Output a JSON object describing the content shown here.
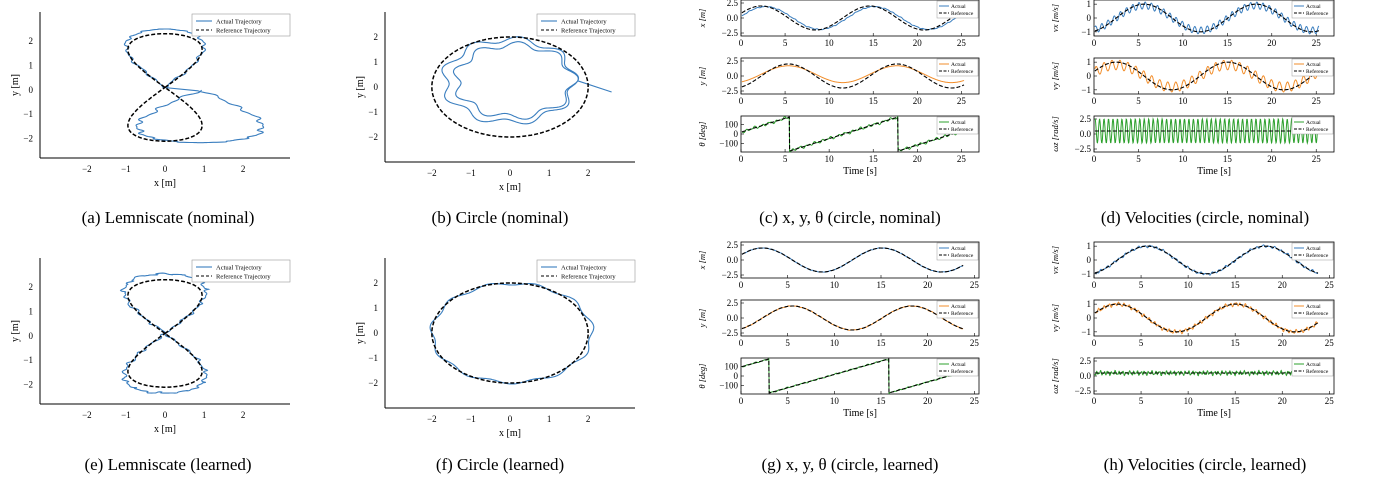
{
  "captions": [
    "(a) Lemniscate (nominal)",
    "(b) Circle (nominal)",
    "(c) x, y, θ (circle, nominal)",
    "(d) Velocities (circle, nominal)",
    "(e) Lemniscate (learned)",
    "(f) Circle (learned)",
    "(g) x, y, θ (circle, learned)",
    "(h) Velocities (circle, learned)"
  ],
  "colors": {
    "actual": "#3a7ebf",
    "reference": "#000000",
    "orange": "#f28e2b",
    "green": "#2ca02c"
  },
  "chart_data": [
    {
      "id": "a",
      "type": "line",
      "xlabel": "x [m]",
      "ylabel": "y [m]",
      "xlim": [
        -3.2,
        3.2
      ],
      "ylim": [
        -2.8,
        3.2
      ],
      "xticks": [
        -2,
        -1,
        0,
        1,
        2
      ],
      "yticks": [
        -2,
        -1,
        0,
        1,
        2
      ],
      "legend": [
        "Actual Trajectory",
        "Reference Trajectory"
      ],
      "series": [
        {
          "name": "Actual Trajectory",
          "shape": "lemniscate_nominal"
        },
        {
          "name": "Reference Trajectory",
          "shape": "lemniscate"
        }
      ]
    },
    {
      "id": "b",
      "type": "line",
      "xlabel": "x [m]",
      "ylabel": "y [m]",
      "xlim": [
        -3.2,
        3.2
      ],
      "ylim": [
        -3.0,
        3.0
      ],
      "xticks": [
        -2,
        -1,
        0,
        1,
        2
      ],
      "yticks": [
        -2,
        -1,
        0,
        1,
        2
      ],
      "legend": [
        "Actual Trajectory",
        "Reference Trajectory"
      ],
      "series": [
        {
          "name": "Actual Trajectory",
          "shape": "circle_nominal"
        },
        {
          "name": "Reference Trajectory",
          "shape": "circle",
          "radius": 2.0
        }
      ]
    },
    {
      "id": "c",
      "type": "line",
      "xlabel": "Time [s]",
      "subplots": [
        {
          "ylabel": "x [m]",
          "yticks": [
            "2.5",
            "0.0",
            "−2.5"
          ],
          "ytickvals": [
            2.5,
            0,
            -2.5
          ],
          "ylim": [
            -3,
            3
          ],
          "legend": [
            "Actual",
            "Reference"
          ],
          "xticks": [
            0,
            5,
            10,
            15,
            20,
            25
          ],
          "xlim": [
            0,
            27
          ]
        },
        {
          "ylabel": "y [m]",
          "yticks": [
            "2.5",
            "0.0",
            "−2.5"
          ],
          "ytickvals": [
            2.5,
            0,
            -2.5
          ],
          "ylim": [
            -3,
            3
          ],
          "legend": [
            "Actual",
            "Reference"
          ],
          "xticks": [
            0,
            5,
            10,
            15,
            20,
            25
          ],
          "xlim": [
            0,
            27
          ]
        },
        {
          "ylabel": "θ [deg]",
          "yticks": [
            "100",
            "0",
            "−100"
          ],
          "ytickvals": [
            100,
            0,
            -100
          ],
          "ylim": [
            -190,
            190
          ],
          "legend": [
            "Actual",
            "Reference"
          ],
          "xticks": [
            0,
            5,
            10,
            15,
            20,
            25
          ],
          "xlim": [
            0,
            27
          ]
        }
      ]
    },
    {
      "id": "d",
      "type": "line",
      "xlabel": "Time [s]",
      "subplots": [
        {
          "ylabel": "vx [m/s]",
          "yticks": [
            "1",
            "0",
            "−1"
          ],
          "ytickvals": [
            1,
            0,
            -1
          ],
          "ylim": [
            -1.3,
            1.3
          ],
          "legend": [
            "Actual",
            "Reference"
          ],
          "xticks": [
            0,
            5,
            10,
            15,
            20,
            25
          ],
          "xlim": [
            0,
            27
          ]
        },
        {
          "ylabel": "vy [m/s]",
          "yticks": [
            "1",
            "0",
            "−1"
          ],
          "ytickvals": [
            1,
            0,
            -1
          ],
          "ylim": [
            -1.3,
            1.3
          ],
          "legend": [
            "Actual",
            "Reference"
          ],
          "xticks": [
            0,
            5,
            10,
            15,
            20,
            25
          ],
          "xlim": [
            0,
            27
          ]
        },
        {
          "ylabel": "ωz [rad/s]",
          "yticks": [
            "2.5",
            "0.0",
            "−2.5"
          ],
          "ytickvals": [
            2.5,
            0,
            -2.5
          ],
          "ylim": [
            -3,
            3
          ],
          "legend": [
            "Actual",
            "Reference"
          ],
          "xticks": [
            0,
            5,
            10,
            15,
            20,
            25
          ],
          "xlim": [
            0,
            27
          ]
        }
      ]
    },
    {
      "id": "e",
      "type": "line",
      "xlabel": "x [m]",
      "ylabel": "y [m]",
      "xlim": [
        -3.2,
        3.2
      ],
      "ylim": [
        -2.8,
        3.2
      ],
      "xticks": [
        -2,
        -1,
        0,
        1,
        2
      ],
      "yticks": [
        -2,
        -1,
        0,
        1,
        2
      ],
      "legend": [
        "Actual Trajectory",
        "Reference Trajectory"
      ],
      "series": [
        {
          "name": "Actual Trajectory",
          "shape": "lemniscate_learned"
        },
        {
          "name": "Reference Trajectory",
          "shape": "lemniscate"
        }
      ]
    },
    {
      "id": "f",
      "type": "line",
      "xlabel": "x [m]",
      "ylabel": "y [m]",
      "xlim": [
        -3.2,
        3.2
      ],
      "ylim": [
        -3.0,
        3.0
      ],
      "xticks": [
        -2,
        -1,
        0,
        1,
        2
      ],
      "yticks": [
        -2,
        -1,
        0,
        1,
        2
      ],
      "legend": [
        "Actual Trajectory",
        "Reference Trajectory"
      ],
      "series": [
        {
          "name": "Actual Trajectory",
          "shape": "circle_learned"
        },
        {
          "name": "Reference Trajectory",
          "shape": "circle",
          "radius": 2.0
        }
      ]
    },
    {
      "id": "g",
      "type": "line",
      "xlabel": "Time [s]",
      "subplots": [
        {
          "ylabel": "x [m]",
          "yticks": [
            "2.5",
            "0.0",
            "−2.5"
          ],
          "ytickvals": [
            2.5,
            0,
            -2.5
          ],
          "ylim": [
            -3,
            3
          ],
          "legend": [
            "Actual",
            "Reference"
          ],
          "xticks": [
            0,
            5,
            10,
            15,
            20,
            25
          ],
          "xlim": [
            0,
            25.5
          ]
        },
        {
          "ylabel": "y [m]",
          "yticks": [
            "2.5",
            "0.0",
            "−2.5"
          ],
          "ytickvals": [
            2.5,
            0,
            -2.5
          ],
          "ylim": [
            -3,
            3
          ],
          "legend": [
            "Actual",
            "Reference"
          ],
          "xticks": [
            0,
            5,
            10,
            15,
            20,
            25
          ],
          "xlim": [
            0,
            25.5
          ]
        },
        {
          "ylabel": "θ [deg]",
          "yticks": [
            "100",
            "0",
            "−100"
          ],
          "ytickvals": [
            100,
            0,
            -100
          ],
          "ylim": [
            -190,
            190
          ],
          "legend": [
            "Actual",
            "Reference"
          ],
          "xticks": [
            0,
            5,
            10,
            15,
            20,
            25
          ],
          "xlim": [
            0,
            25.5
          ]
        }
      ]
    },
    {
      "id": "h",
      "type": "line",
      "xlabel": "Time [s]",
      "subplots": [
        {
          "ylabel": "vx [m/s]",
          "yticks": [
            "1",
            "0",
            "−1"
          ],
          "ytickvals": [
            1,
            0,
            -1
          ],
          "ylim": [
            -1.3,
            1.3
          ],
          "legend": [
            "Actual",
            "Reference"
          ],
          "xticks": [
            0,
            5,
            10,
            15,
            20,
            25
          ],
          "xlim": [
            0,
            25.5
          ]
        },
        {
          "ylabel": "vy [m/s]",
          "yticks": [
            "1",
            "0",
            "−1"
          ],
          "ytickvals": [
            1,
            0,
            -1
          ],
          "ylim": [
            -1.3,
            1.3
          ],
          "legend": [
            "Actual",
            "Reference"
          ],
          "xticks": [
            0,
            5,
            10,
            15,
            20,
            25
          ],
          "xlim": [
            0,
            25.5
          ]
        },
        {
          "ylabel": "ωz [rad/s]",
          "yticks": [
            "2.5",
            "0.0",
            "−2.5"
          ],
          "ytickvals": [
            2.5,
            0,
            -2.5
          ],
          "ylim": [
            -3,
            3
          ],
          "legend": [
            "Actual",
            "Reference"
          ],
          "xticks": [
            0,
            5,
            10,
            15,
            20,
            25
          ],
          "xlim": [
            0,
            25.5
          ]
        }
      ]
    }
  ]
}
